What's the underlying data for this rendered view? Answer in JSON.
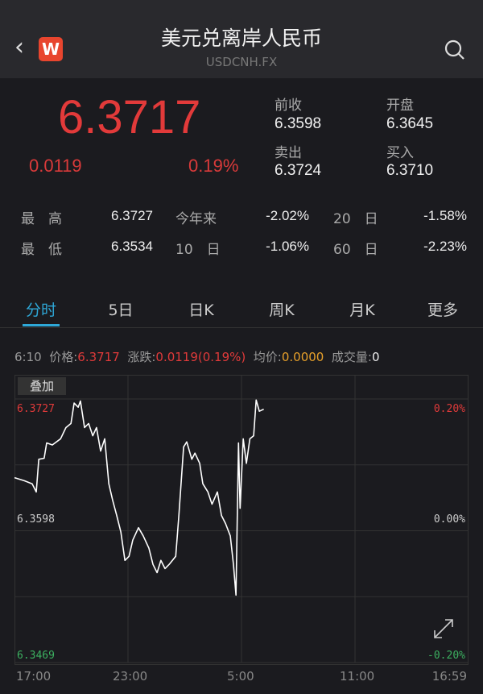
{
  "header": {
    "title": "美元兑离岸人民币",
    "subtitle": "USDCNH.FX",
    "back_icon": "chevron-left-icon",
    "logo_text": "W",
    "search_icon": "search-icon"
  },
  "quote": {
    "price": "6.3717",
    "change": "0.0119",
    "change_pct": "0.19%",
    "color_up": "#e23a3a",
    "fields": [
      {
        "label": "前收",
        "value": "6.3598"
      },
      {
        "label": "开盘",
        "value": "6.3645"
      },
      {
        "label": "卖出",
        "value": "6.3724"
      },
      {
        "label": "买入",
        "value": "6.3710"
      }
    ]
  },
  "stats": [
    [
      {
        "label": "最　高",
        "value": "6.3727"
      },
      {
        "label": "今年来",
        "value": "-2.02%"
      },
      {
        "label": "20　日",
        "value": "-1.58%"
      }
    ],
    [
      {
        "label": "最　低",
        "value": "6.3534"
      },
      {
        "label": "10　日",
        "value": "-1.06%"
      },
      {
        "label": "60　日",
        "value": "-2.23%"
      }
    ]
  ],
  "tabs": [
    "分时",
    "5日",
    "日K",
    "周K",
    "月K",
    "更多"
  ],
  "active_tab": "分时",
  "info": {
    "time": "6:10",
    "price_label": "价格:",
    "price": "6.3717",
    "chg_label": "涨跌:",
    "chg": "0.0119(0.19%)",
    "avg_label": "均价:",
    "avg": "0.0000",
    "vol_label": "成交量:",
    "vol": "0"
  },
  "chart": {
    "overlay_button": "叠加",
    "expand_icon": "expand-icon"
  },
  "chart_data": {
    "type": "line",
    "y_left_ticks": [
      "6.3727",
      "6.3598",
      "6.3469"
    ],
    "y_right_ticks": [
      "0.20%",
      "0.00%",
      "-0.20%"
    ],
    "x_ticks": [
      "17:00",
      "23:00",
      "5:00",
      "11:00",
      "16:59"
    ],
    "ylim": [
      6.3469,
      6.3727
    ],
    "xlim": [
      "17:00",
      "16:59"
    ],
    "grid": true,
    "line_color": "#ffffff",
    "points": [
      [
        "17:00",
        6.365
      ],
      [
        "17:31",
        6.3647
      ],
      [
        "17:56",
        6.3644
      ],
      [
        "18:09",
        6.3636
      ],
      [
        "18:17",
        6.3668
      ],
      [
        "18:34",
        6.3669
      ],
      [
        "18:42",
        6.3684
      ],
      [
        "19:00",
        6.3682
      ],
      [
        "19:26",
        6.3688
      ],
      [
        "19:43",
        6.3699
      ],
      [
        "19:59",
        6.3703
      ],
      [
        "20:09",
        6.3723
      ],
      [
        "20:22",
        6.3719
      ],
      [
        "20:29",
        6.3725
      ],
      [
        "20:42",
        6.3699
      ],
      [
        "20:55",
        6.3703
      ],
      [
        "21:08",
        6.3691
      ],
      [
        "21:20",
        6.3699
      ],
      [
        "21:33",
        6.3676
      ],
      [
        "21:46",
        6.3688
      ],
      [
        "21:59",
        6.3644
      ],
      [
        "22:11",
        6.3628
      ],
      [
        "22:24",
        6.3613
      ],
      [
        "22:37",
        6.3597
      ],
      [
        "22:50",
        6.3569
      ],
      [
        "23:03",
        6.3573
      ],
      [
        "23:15",
        6.3589
      ],
      [
        "23:33",
        6.3601
      ],
      [
        "23:48",
        6.3593
      ],
      [
        "00:06",
        6.3581
      ],
      [
        "00:19",
        6.3565
      ],
      [
        "00:32",
        6.3557
      ],
      [
        "00:44",
        6.3569
      ],
      [
        "00:57",
        6.3561
      ],
      [
        "01:10",
        6.3565
      ],
      [
        "01:31",
        6.3573
      ],
      [
        "01:41",
        6.3613
      ],
      [
        "01:56",
        6.368
      ],
      [
        "02:06",
        6.3685
      ],
      [
        "02:22",
        6.3668
      ],
      [
        "02:32",
        6.3674
      ],
      [
        "02:47",
        6.3664
      ],
      [
        "02:57",
        6.3644
      ],
      [
        "03:13",
        6.3636
      ],
      [
        "03:26",
        6.3624
      ],
      [
        "03:43",
        6.3636
      ],
      [
        "03:56",
        6.3613
      ],
      [
        "04:09",
        6.3605
      ],
      [
        "04:24",
        6.3593
      ],
      [
        "04:34",
        6.3565
      ],
      [
        "04:42",
        6.3535
      ],
      [
        "04:50",
        6.3684
      ],
      [
        "04:55",
        6.362
      ],
      [
        "05:05",
        6.3688
      ],
      [
        "05:15",
        6.3664
      ],
      [
        "05:26",
        6.3688
      ],
      [
        "05:38",
        6.3691
      ],
      [
        "05:46",
        6.3726
      ],
      [
        "05:56",
        6.3715
      ],
      [
        "06:10",
        6.3717
      ]
    ]
  }
}
